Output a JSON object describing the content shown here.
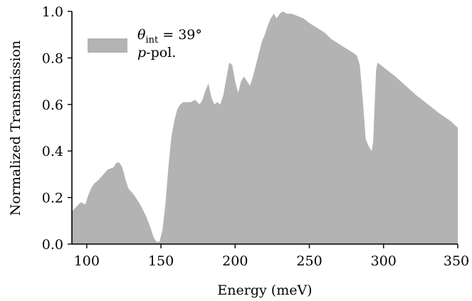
{
  "chart_data": {
    "type": "area",
    "xlabel": "Energy (meV)",
    "ylabel": "Normalized Transmission",
    "xlim": [
      90,
      350
    ],
    "ylim": [
      0.0,
      1.0
    ],
    "xticks": [
      100,
      150,
      200,
      250,
      300,
      350
    ],
    "yticks": [
      0.0,
      0.2,
      0.4,
      0.6,
      0.8,
      1.0
    ],
    "xtick_labels": [
      "100",
      "150",
      "200",
      "250",
      "300",
      "350"
    ],
    "ytick_labels": [
      "0.0",
      "0.2",
      "0.4",
      "0.6",
      "0.8",
      "1.0"
    ],
    "grid": false,
    "legend_position": "top-left",
    "fill_color": "#b3b3b3",
    "series": [
      {
        "legend_line1": "θint = 39°",
        "legend_line2": "p-pol.",
        "x": [
          90,
          93,
          96,
          99,
          101,
          103,
          105,
          107,
          110,
          114,
          118,
          120,
          122,
          124,
          126,
          128,
          132,
          136,
          140,
          143,
          145,
          147,
          149,
          151,
          153,
          155,
          157,
          159,
          161,
          163,
          165,
          167,
          170,
          173,
          176,
          178,
          180,
          182,
          184,
          186,
          188,
          190,
          192,
          194,
          196,
          198,
          200,
          202,
          204,
          206,
          208,
          210,
          212,
          214,
          216,
          218,
          220,
          222,
          224,
          226,
          228,
          230,
          232,
          235,
          238,
          242,
          246,
          250,
          255,
          260,
          265,
          270,
          275,
          280,
          282,
          284,
          286,
          288,
          290,
          292,
          293,
          294,
          295,
          296,
          298,
          302,
          308,
          315,
          322,
          330,
          338,
          345,
          350
        ],
        "y": [
          0.14,
          0.16,
          0.18,
          0.17,
          0.21,
          0.24,
          0.26,
          0.27,
          0.29,
          0.32,
          0.33,
          0.35,
          0.35,
          0.33,
          0.28,
          0.24,
          0.21,
          0.17,
          0.12,
          0.07,
          0.03,
          0.01,
          0.01,
          0.06,
          0.17,
          0.33,
          0.46,
          0.53,
          0.58,
          0.6,
          0.61,
          0.61,
          0.61,
          0.62,
          0.6,
          0.62,
          0.66,
          0.69,
          0.63,
          0.6,
          0.61,
          0.6,
          0.64,
          0.71,
          0.78,
          0.77,
          0.7,
          0.65,
          0.7,
          0.72,
          0.7,
          0.68,
          0.72,
          0.77,
          0.82,
          0.87,
          0.9,
          0.94,
          0.97,
          0.99,
          0.97,
          0.99,
          1.0,
          0.99,
          0.99,
          0.98,
          0.97,
          0.95,
          0.93,
          0.91,
          0.88,
          0.86,
          0.84,
          0.82,
          0.81,
          0.77,
          0.62,
          0.45,
          0.42,
          0.4,
          0.44,
          0.6,
          0.75,
          0.78,
          0.77,
          0.75,
          0.72,
          0.68,
          0.64,
          0.6,
          0.56,
          0.53,
          0.5
        ]
      }
    ]
  }
}
